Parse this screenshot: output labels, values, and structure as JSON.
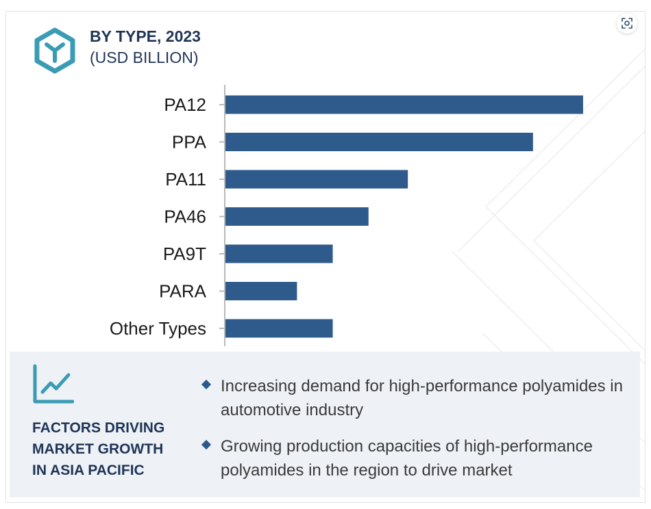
{
  "header": {
    "title": "BY TYPE, 2023",
    "subtitle": "(USD BILLION)"
  },
  "colors": {
    "bar": "#2e5b8c",
    "accent_teal": "#3a9cb4",
    "heading": "#1f3556",
    "panel_bg": "#eef1f6"
  },
  "chart_data": {
    "type": "bar",
    "orientation": "horizontal",
    "title": "BY TYPE, 2023",
    "subtitle": "(USD BILLION)",
    "categories": [
      "PA12",
      "PPA",
      "PA11",
      "PA46",
      "PA9T",
      "PARA",
      "Other Types"
    ],
    "values": [
      10.0,
      8.6,
      5.1,
      4.0,
      3.0,
      2.0,
      3.0
    ],
    "xlim": [
      0,
      10.5
    ],
    "grid": false,
    "legend": false
  },
  "factors": {
    "heading_lines": [
      "FACTORS DRIVING",
      "MARKET GROWTH",
      "IN ASIA PACIFIC"
    ],
    "items": [
      "Increasing demand for high-performance polyamides in automotive industry",
      "Growing production capacities of high-performance polyamides in the region to drive market"
    ]
  },
  "icons": {
    "logo": "cube-hexagon-icon",
    "trend": "trend-line-chart-icon",
    "expand": "expand-view-icon"
  }
}
